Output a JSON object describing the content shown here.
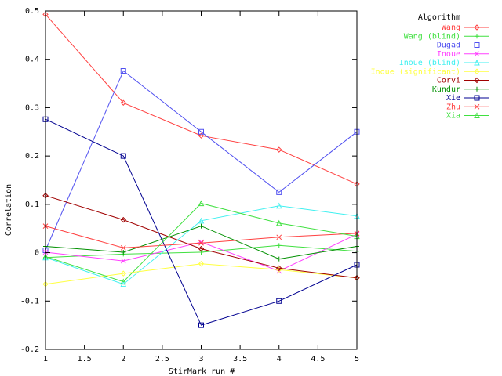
{
  "chart_data": {
    "type": "line",
    "title": "",
    "xlabel": "StirMark run #",
    "ylabel": "Correlation",
    "xlim": [
      1,
      5
    ],
    "ylim": [
      -0.2,
      0.5
    ],
    "x": [
      1,
      2,
      3,
      4,
      5
    ],
    "x_ticks": [
      "1",
      "1.5",
      "2",
      "2.5",
      "3",
      "3.5",
      "4",
      "4.5",
      "5"
    ],
    "x_tick_values": [
      1,
      1.5,
      2,
      2.5,
      3,
      3.5,
      4,
      4.5,
      5
    ],
    "y_ticks": [
      "-0.2",
      "-0.1",
      "0",
      "0.1",
      "0.2",
      "0.3",
      "0.4",
      "0.5"
    ],
    "y_tick_values": [
      -0.2,
      -0.1,
      0,
      0.1,
      0.2,
      0.3,
      0.4,
      0.5
    ],
    "grid": false,
    "legend_position": "top-right outside",
    "legend_title": "Algorithm",
    "series": [
      {
        "name": "Wang",
        "color": "#ff4040",
        "marker": "diamond",
        "values": [
          0.493,
          0.31,
          0.242,
          0.213,
          0.142
        ]
      },
      {
        "name": "Wang (blind)",
        "color": "#40e040",
        "marker": "plus",
        "values": [
          -0.01,
          -0.003,
          0.001,
          0.015,
          0.003
        ]
      },
      {
        "name": "Dugad",
        "color": "#5050f0",
        "marker": "square",
        "values": [
          0.005,
          0.376,
          0.25,
          0.125,
          0.25
        ]
      },
      {
        "name": "Inoue",
        "color": "#ff40ff",
        "marker": "x",
        "values": [
          0.001,
          -0.017,
          0.022,
          -0.038,
          0.038
        ]
      },
      {
        "name": "Inoue (blind)",
        "color": "#40f0f0",
        "marker": "triangle",
        "values": [
          -0.01,
          -0.065,
          0.066,
          0.097,
          0.076
        ]
      },
      {
        "name": "Inoue (significant)",
        "color": "#ffff40",
        "marker": "diamond",
        "values": [
          -0.065,
          -0.043,
          -0.023,
          -0.035,
          -0.052
        ]
      },
      {
        "name": "Corvi",
        "color": "#a00000",
        "marker": "diamond",
        "values": [
          0.118,
          0.068,
          0.008,
          -0.032,
          -0.052
        ]
      },
      {
        "name": "Kundur",
        "color": "#009000",
        "marker": "plus",
        "values": [
          0.013,
          0.001,
          0.055,
          -0.013,
          0.013
        ]
      },
      {
        "name": "Xie",
        "color": "#000090",
        "marker": "square",
        "values": [
          0.276,
          0.2,
          -0.15,
          -0.1,
          -0.025
        ]
      },
      {
        "name": "Zhu",
        "color": "#ff4040",
        "marker": "x",
        "values": [
          0.055,
          0.01,
          0.02,
          0.032,
          0.04
        ]
      },
      {
        "name": "Xia",
        "color": "#40e040",
        "marker": "triangle",
        "values": [
          -0.008,
          -0.06,
          0.102,
          0.061,
          0.034
        ]
      }
    ]
  }
}
